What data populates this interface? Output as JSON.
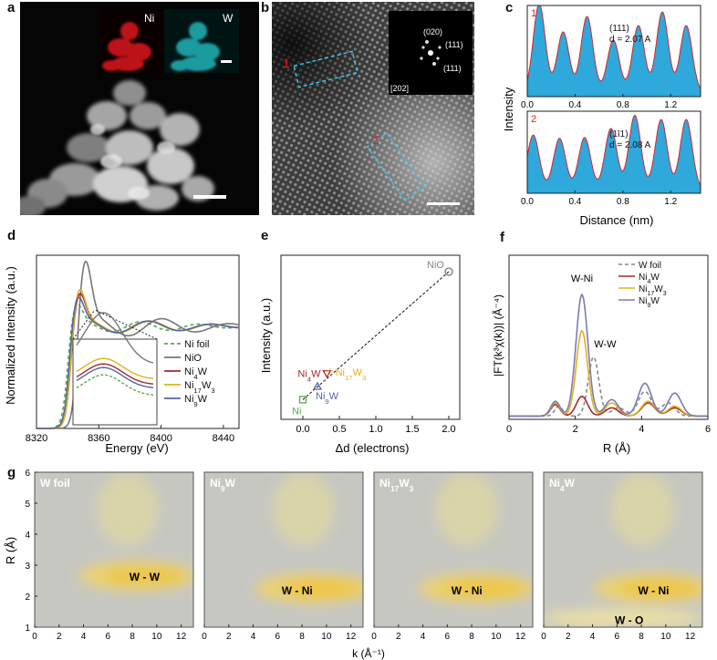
{
  "panel_labels": [
    "a",
    "b",
    "c",
    "d",
    "e",
    "f",
    "g"
  ],
  "panel_a": {
    "inset_labels": [
      "Ni",
      "W"
    ],
    "colors": {
      "ni_map": "#d0141c",
      "w_map": "#22b3b8",
      "background": "#050505"
    }
  },
  "panel_b": {
    "fft_labels": [
      "(020)",
      "(111)",
      "(111)",
      "[202]"
    ],
    "region_labels": [
      "1",
      "2"
    ]
  },
  "chart_data": [
    {
      "id": "c",
      "type": "area",
      "xlabel": "Distance (nm)",
      "ylabel": "Intensity",
      "xlim": [
        0,
        1.45
      ],
      "xticks": [
        0.0,
        0.4,
        0.8,
        1.2
      ],
      "xtick_labels": [
        "0.0",
        "0.4",
        "0.8",
        "1.2"
      ],
      "fill_color": "#2fa8dc",
      "line_color": "#d9252a",
      "subpanels": [
        {
          "label": "1",
          "plane": "(111)",
          "d_label": "d = 2.07 A",
          "peaks": [
            0.1,
            0.3,
            0.5,
            0.72,
            0.93,
            1.13,
            1.33
          ],
          "heights": [
            0.97,
            0.66,
            0.83,
            0.57,
            0.73,
            0.88,
            0.73
          ],
          "valleys": [
            0.32,
            0.22,
            0.25,
            0.28,
            0.3,
            0.32,
            0.3,
            0.3
          ]
        },
        {
          "label": "2",
          "plane": "(1ī1)",
          "d_label": "d = 2.08 A",
          "peaks": [
            0.05,
            0.27,
            0.48,
            0.7,
            0.9,
            1.12,
            1.33
          ],
          "heights": [
            0.66,
            0.62,
            0.63,
            0.74,
            0.9,
            0.85,
            0.85
          ],
          "valleys": [
            0.4,
            0.25,
            0.33,
            0.32,
            0.35,
            0.32,
            0.35,
            0.32
          ]
        }
      ]
    },
    {
      "id": "d",
      "type": "line",
      "xlabel": "Energy (eV)",
      "ylabel": "Normalized Intensity (a.u.)",
      "xlim": [
        8320,
        8450
      ],
      "xticks": [
        8320,
        8360,
        8400,
        8440
      ],
      "xtick_labels": [
        "8320",
        "8360",
        "8400",
        "8440"
      ],
      "series": [
        {
          "name": "Ni foil",
          "sub": "",
          "tail": "",
          "color": "#5aa84a",
          "dash": true
        },
        {
          "name": "NiO",
          "sub": "",
          "tail": "",
          "color": "#777777",
          "dash": false
        },
        {
          "name": "Ni",
          "sub": "4",
          "tail": "W",
          "color": "#a52a2a",
          "dash": false
        },
        {
          "name": "Ni",
          "sub": "17",
          "tail": "W",
          "sub2": "3",
          "color": "#e0b21c",
          "dash": false
        },
        {
          "name": "Ni",
          "sub": "9",
          "tail": "W",
          "color": "#5566a8",
          "dash": false
        }
      ]
    },
    {
      "id": "e",
      "type": "scatter",
      "xlabel": "Δd (electrons)",
      "ylabel": "Intensity (a.u.)",
      "xlim": [
        -0.3,
        2.15
      ],
      "xticks": [
        0.0,
        0.5,
        1.0,
        1.5,
        2.0
      ],
      "xtick_labels": [
        "0.0",
        "0.5",
        "1.0",
        "1.5",
        "2.0"
      ],
      "points": [
        {
          "label": "Ni",
          "x": 0.0,
          "y": 0.12,
          "color": "#5aa84a",
          "marker": "square"
        },
        {
          "label": "Ni9W",
          "x": 0.2,
          "y": 0.2,
          "color": "#5566a8",
          "marker": "triangle-up"
        },
        {
          "label": "Ni4W",
          "x": 0.33,
          "y": 0.28,
          "color": "#a52a2a",
          "marker": "triangle-down"
        },
        {
          "label": "Ni17W3",
          "x": 0.37,
          "y": 0.29,
          "color": "#e0b21c",
          "marker": "star"
        },
        {
          "label": "NiO",
          "x": 2.0,
          "y": 0.9,
          "color": "#777777",
          "marker": "circle"
        }
      ],
      "point_labels": {
        "ni": "Ni",
        "ni9w": "Ni",
        "ni9w_sub": "9",
        "ni9w_tail": "W",
        "ni4w": "Ni",
        "ni4w_sub": "4",
        "ni4w_tail": "W",
        "ni17w3": "Ni",
        "ni17w3_sub": "17",
        "ni17w3_tail": "W",
        "ni17w3_sub2": "3",
        "nio": "NiO"
      }
    },
    {
      "id": "f",
      "type": "line",
      "xlabel": "R (Å)",
      "ylabel": "|FT(k³χ(k))| (Å⁻⁴)",
      "xlim": [
        0,
        6
      ],
      "xticks": [
        0,
        2,
        4,
        6
      ],
      "xtick_labels": [
        "0",
        "2",
        "4",
        "6"
      ],
      "annotations": [
        "W-Ni",
        "W-W"
      ],
      "series": [
        {
          "name": "W foil",
          "color": "#888888",
          "dash": true
        },
        {
          "name": "Ni",
          "sub": "4",
          "tail": "W",
          "color": "#a52a2a",
          "dash": false
        },
        {
          "name": "Ni",
          "sub": "17",
          "tail": "W",
          "sub2": "3",
          "color": "#e0b21c",
          "dash": false
        },
        {
          "name": "Ni",
          "sub": "9",
          "tail": "W",
          "color": "#7a7ab8",
          "dash": false
        }
      ]
    },
    {
      "id": "g",
      "type": "heatmap",
      "xlabel": "k (Å⁻¹)",
      "ylabel": "R (Å)",
      "xlim": [
        0,
        13
      ],
      "ylim": [
        1,
        6
      ],
      "xticks": [
        0,
        2,
        4,
        6,
        8,
        10,
        12
      ],
      "xtick_labels": [
        "0",
        "2",
        "4",
        "6",
        "8",
        "10",
        "12"
      ],
      "yticks": [
        1,
        2,
        3,
        4,
        5,
        6
      ],
      "ytick_labels": [
        "1",
        "2",
        "3",
        "4",
        "5",
        "6"
      ],
      "maps": [
        {
          "title": "W foil",
          "title_sub": "",
          "title_tail": "",
          "label": "W - W",
          "center_k": 9.0,
          "center_r": 2.65,
          "label_k": 9.0,
          "label_r": 2.65,
          "extra_label": ""
        },
        {
          "title": "Ni",
          "title_sub": "9",
          "title_tail": "W",
          "label": "W - Ni",
          "center_k": 9.5,
          "center_r": 2.25,
          "label_k": 7.6,
          "label_r": 2.2,
          "extra_label": ""
        },
        {
          "title": "Ni",
          "title_sub": "17",
          "title_tail": "W",
          "title_sub2": "3",
          "label": "W - Ni",
          "center_k": 9.0,
          "center_r": 2.25,
          "label_k": 7.6,
          "label_r": 2.2,
          "extra_label": ""
        },
        {
          "title": "Ni",
          "title_sub": "4",
          "title_tail": "W",
          "label": "W - Ni",
          "center_k": 9.5,
          "center_r": 2.25,
          "label_k": 9.0,
          "label_r": 2.2,
          "extra_label": "W - O"
        }
      ]
    }
  ]
}
